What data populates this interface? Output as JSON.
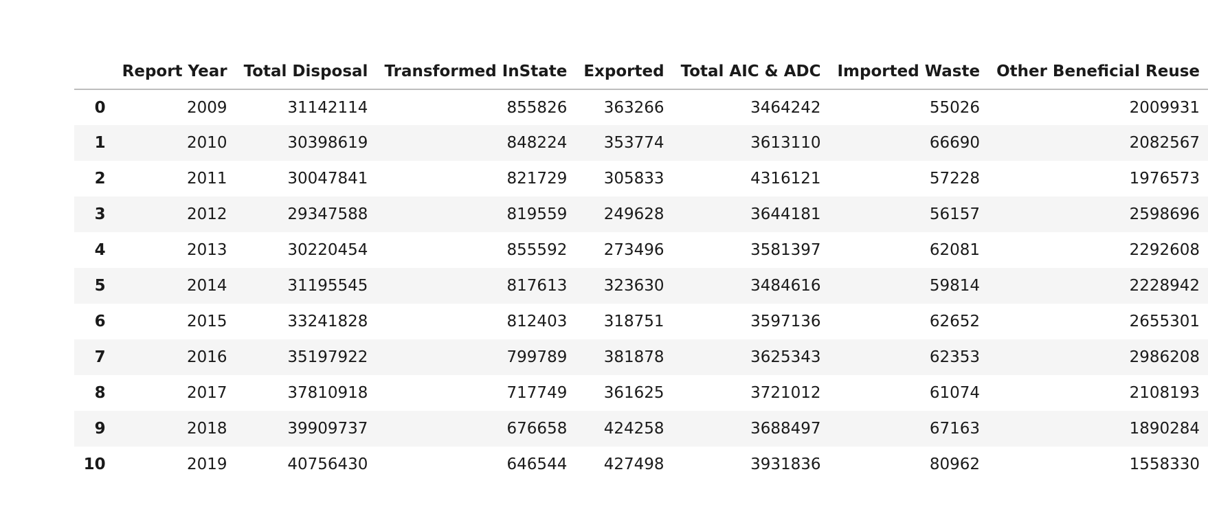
{
  "table": {
    "columns": [
      "",
      "Report Year",
      "Total Disposal",
      "Transformed InState",
      "Exported",
      "Total AIC & ADC",
      "Imported Waste",
      "Other Beneficial Reuse"
    ],
    "rows": [
      [
        "0",
        "2009",
        "31142114",
        "855826",
        "363266",
        "3464242",
        "55026",
        "2009931"
      ],
      [
        "1",
        "2010",
        "30398619",
        "848224",
        "353774",
        "3613110",
        "66690",
        "2082567"
      ],
      [
        "2",
        "2011",
        "30047841",
        "821729",
        "305833",
        "4316121",
        "57228",
        "1976573"
      ],
      [
        "3",
        "2012",
        "29347588",
        "819559",
        "249628",
        "3644181",
        "56157",
        "2598696"
      ],
      [
        "4",
        "2013",
        "30220454",
        "855592",
        "273496",
        "3581397",
        "62081",
        "2292608"
      ],
      [
        "5",
        "2014",
        "31195545",
        "817613",
        "323630",
        "3484616",
        "59814",
        "2228942"
      ],
      [
        "6",
        "2015",
        "33241828",
        "812403",
        "318751",
        "3597136",
        "62652",
        "2655301"
      ],
      [
        "7",
        "2016",
        "35197922",
        "799789",
        "381878",
        "3625343",
        "62353",
        "2986208"
      ],
      [
        "8",
        "2017",
        "37810918",
        "717749",
        "361625",
        "3721012",
        "61074",
        "2108193"
      ],
      [
        "9",
        "2018",
        "39909737",
        "676658",
        "424258",
        "3688497",
        "67163",
        "1890284"
      ],
      [
        "10",
        "2019",
        "40756430",
        "646544",
        "427498",
        "3931836",
        "80962",
        "1558330"
      ]
    ]
  }
}
